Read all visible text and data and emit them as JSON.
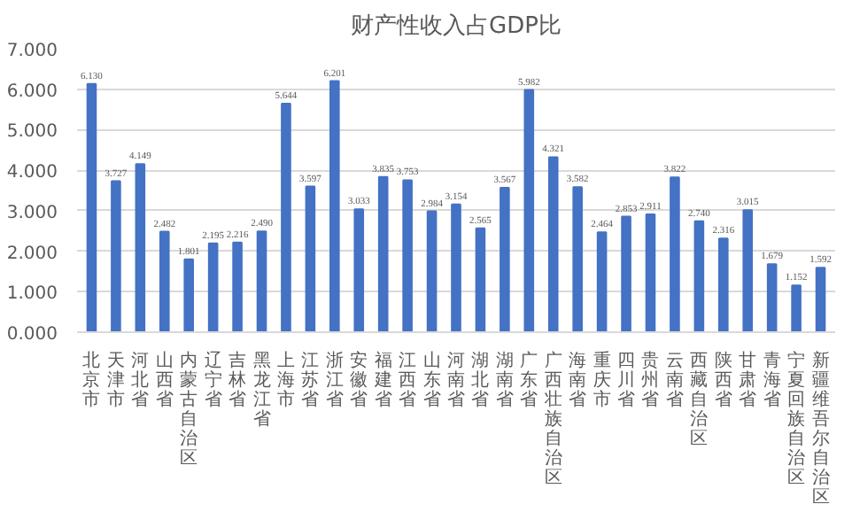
{
  "chart_data": {
    "type": "bar",
    "title": "财产性收入占GDP比",
    "categories": [
      "北京市",
      "天津市",
      "河北省",
      "山西省",
      "内蒙古自治区",
      "辽宁省",
      "吉林省",
      "黑龙江省",
      "上海市",
      "江苏省",
      "浙江省",
      "安徽省",
      "福建省",
      "江西省",
      "山东省",
      "河南省",
      "湖北省",
      "湖南省",
      "广东省",
      "广西壮族自治区",
      "海南省",
      "重庆市",
      "四川省",
      "贵州省",
      "云南省",
      "西藏自治区",
      "陕西省",
      "甘肃省",
      "青海省",
      "宁夏回族自治区",
      "新疆维吾尔自治区"
    ],
    "values": [
      6.13,
      3.727,
      4.149,
      2.482,
      1.801,
      2.195,
      2.216,
      2.49,
      5.644,
      3.597,
      6.201,
      3.033,
      3.835,
      3.753,
      2.984,
      3.154,
      2.565,
      3.567,
      5.982,
      4.321,
      3.582,
      2.464,
      2.853,
      2.911,
      3.822,
      2.74,
      2.316,
      3.015,
      1.679,
      1.152,
      1.592
    ],
    "color": "#4472c4",
    "ylim": [
      0,
      7
    ],
    "yticks": [
      {
        "value": 0,
        "label": "0.000"
      },
      {
        "value": 1,
        "label": "1.000"
      },
      {
        "value": 2,
        "label": "2.000"
      },
      {
        "value": 3,
        "label": "3.000"
      },
      {
        "value": 4,
        "label": "4.000"
      },
      {
        "value": 5,
        "label": "5.000"
      },
      {
        "value": 6,
        "label": "6.000"
      },
      {
        "value": 7,
        "label": "7.000"
      }
    ],
    "grid": "y",
    "value_labels": [
      "6.130",
      "3.727",
      "4.149",
      "2.482",
      "1.801",
      "2.195",
      "2.216",
      "2.490",
      "5.644",
      "3.597",
      "6.201",
      "3.033",
      "3.835",
      "3.753",
      "2.984",
      "3.154",
      "2.565",
      "3.567",
      "5.982",
      "4.321",
      "3.582",
      "2.464",
      "2.853",
      "2.911",
      "3.822",
      "2.740",
      "2.316",
      "3.015",
      "1.679",
      "1.152",
      "1.592"
    ]
  }
}
